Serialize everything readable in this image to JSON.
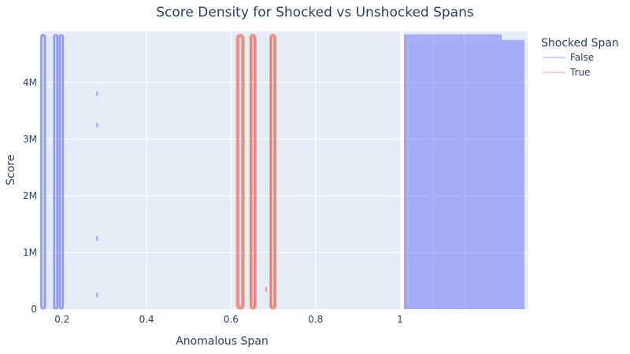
{
  "chart_data": {
    "type": "density_contour_with_marginal_histogram",
    "title": "Score Density for Shocked vs Unshocked Spans",
    "xlabel": "Anomalous Span",
    "ylabel": "Score",
    "xlim": [
      0.15,
      1.0
    ],
    "ylim": [
      0,
      4900000
    ],
    "x_ticks": [
      {
        "value": 0.2,
        "label": "0.2"
      },
      {
        "value": 0.4,
        "label": "0.4"
      },
      {
        "value": 0.6,
        "label": "0.6"
      },
      {
        "value": 0.8,
        "label": "0.8"
      },
      {
        "value": 1.0,
        "label": "1"
      }
    ],
    "y_ticks": [
      {
        "value": 0,
        "label": "0"
      },
      {
        "value": 1000000,
        "label": "1M"
      },
      {
        "value": 2000000,
        "label": "2M"
      },
      {
        "value": 3000000,
        "label": "3M"
      },
      {
        "value": 4000000,
        "label": "4M"
      }
    ],
    "grid": true,
    "legend": {
      "title": "Shocked Span",
      "placement": "top-right"
    },
    "series": [
      {
        "name": "False",
        "color": "#636efa",
        "contour_bands": [
          {
            "x_center": 0.155,
            "half_width": 0.006,
            "y_min": 0,
            "y_max": 4850000,
            "rings": 3
          },
          {
            "x_center": 0.185,
            "half_width": 0.005,
            "y_min": 0,
            "y_max": 4850000,
            "rings": 3
          },
          {
            "x_center": 0.198,
            "half_width": 0.005,
            "y_min": 0,
            "y_max": 4850000,
            "rings": 3
          }
        ],
        "marks": [
          {
            "x": 0.283,
            "y": 3800000
          },
          {
            "x": 0.283,
            "y": 3250000
          },
          {
            "x": 0.283,
            "y": 1250000
          },
          {
            "x": 0.283,
            "y": 250000
          }
        ]
      },
      {
        "name": "True",
        "color": "#ef553b",
        "contour_bands": [
          {
            "x_center": 0.622,
            "half_width": 0.009,
            "y_min": 0,
            "y_max": 4850000,
            "rings": 4
          },
          {
            "x_center": 0.652,
            "half_width": 0.007,
            "y_min": 0,
            "y_max": 4850000,
            "rings": 4
          },
          {
            "x_center": 0.699,
            "half_width": 0.007,
            "y_min": 0,
            "y_max": 4850000,
            "rings": 4
          }
        ],
        "marks": [
          {
            "x": 0.683,
            "y": 350000
          }
        ]
      }
    ],
    "marginal_y_histogram": {
      "type": "bar",
      "orientation": "horizontal",
      "bins": [
        {
          "y0": 0,
          "y1": 4750000,
          "count": 1.0,
          "series": "False"
        },
        {
          "y0": 4750000,
          "y1": 4850000,
          "count": 0.81,
          "series": "False"
        }
      ]
    }
  }
}
